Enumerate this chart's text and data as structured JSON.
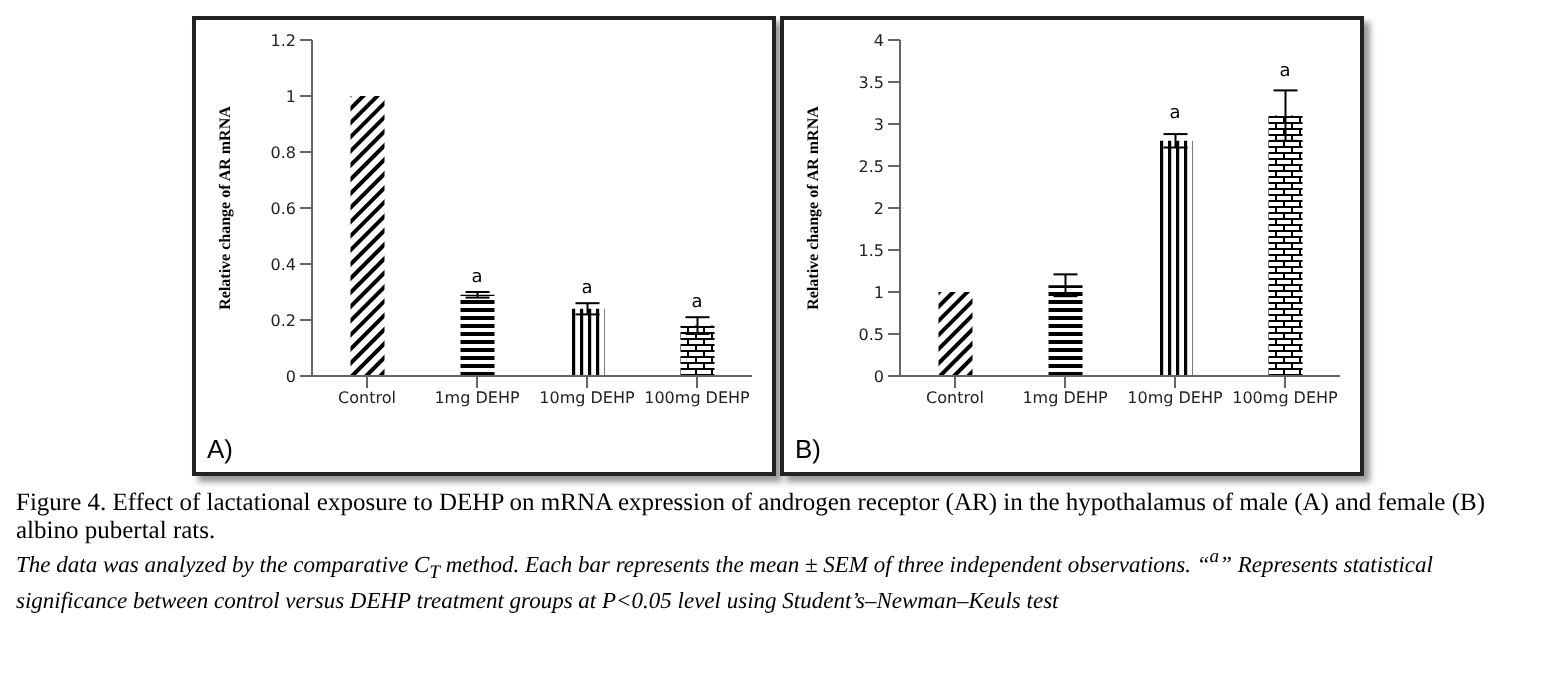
{
  "chart_data": [
    {
      "type": "bar",
      "ylabel": "Relative change of AR mRNA",
      "categories": [
        "Control",
        "1mg DEHP",
        "10mg DEHP",
        "100mg DEHP"
      ],
      "values": [
        1.0,
        0.29,
        0.24,
        0.18
      ],
      "errors": [
        null,
        0.01,
        0.02,
        0.03
      ],
      "colors": [
        "#000000",
        "#000000",
        "#000000",
        "#000000"
      ],
      "ylim": [
        0,
        1.2
      ],
      "yticks": [
        0,
        0.2,
        0.4,
        0.6,
        0.8,
        1,
        1.2
      ],
      "grid": false,
      "legend": false,
      "annotations": [
        "A)",
        {
          "text": "a",
          "x": "1mg DEHP",
          "y": 0.3
        },
        {
          "text": "a",
          "x": "10mg DEHP",
          "y": 0.26
        },
        {
          "text": "a",
          "x": "100mg DEHP",
          "y": 0.21
        },
        "Figure 4. Effect of lactational exposure to DEHP on mRNA expression of androgen receptor (AR) in the hypothalamus of male (A) and female (B) albino pubertal rats.",
        "The data was analyzed by the comparative C$_{T}$ method. Each bar represents the mean ± SEM of three independent observations. “$^{a}$” Represents statistical significance between control versus DEHP treatment groups at P<0.05 level using Student’s–Newman–Keuls test"
      ]
    },
    {
      "type": "bar",
      "ylabel": "Relative change of AR mRNA",
      "categories": [
        "Control",
        "1mg DEHP",
        "10mg DEHP",
        "100mg DEHP"
      ],
      "values": [
        1.0,
        1.08,
        2.8,
        3.1
      ],
      "errors": [
        null,
        0.13,
        0.08,
        0.3
      ],
      "colors": [
        "#000000",
        "#000000",
        "#000000",
        "#000000"
      ],
      "ylim": [
        0,
        4
      ],
      "yticks": [
        0,
        0.5,
        1,
        1.5,
        2,
        2.5,
        3,
        3.5,
        4
      ],
      "grid": false,
      "legend": false,
      "annotations": [
        "B)",
        {
          "text": "a",
          "x": "10mg DEHP",
          "y": 2.95
        },
        {
          "text": "a",
          "x": "100mg DEHP",
          "y": 3.45
        }
      ]
    }
  ]
}
